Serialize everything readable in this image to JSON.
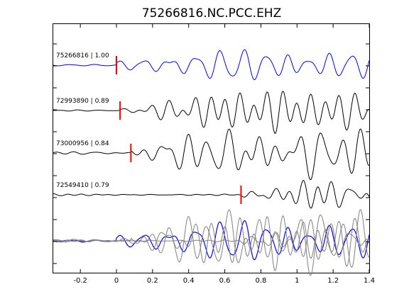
{
  "chart_data": {
    "type": "line",
    "title": "75266816.NC.PCC.EHZ",
    "xlabel": "",
    "ylabel": "",
    "xlim": [
      -0.35,
      1.4
    ],
    "xticks": [
      -0.2,
      0,
      0.2,
      0.4,
      0.6,
      0.8,
      1,
      1.2,
      1.4
    ],
    "xtick_labels": [
      "-0.2",
      "0",
      "0.2",
      "0.4",
      "0.6",
      "0.8",
      "1",
      "1.2",
      "1.4"
    ],
    "grid": false,
    "legend": "none",
    "colors": {
      "reference": "#0000ff",
      "other": "#000000",
      "stack": "#808080",
      "pick": "#ff0000"
    },
    "traces": [
      {
        "label": "75266816 | 1.00",
        "pick_time": 0.0,
        "color": "#0000ff",
        "onset": 0.0
      },
      {
        "label": "72993890 | 0.89",
        "pick_time": 0.02,
        "color": "#000000",
        "onset": 0.0
      },
      {
        "label": "73000956 | 0.84",
        "pick_time": 0.08,
        "color": "#000000",
        "onset": 0.0
      },
      {
        "label": "72549410 | 0.79",
        "pick_time": 0.69,
        "color": "#000000",
        "onset": 0.0
      }
    ]
  }
}
